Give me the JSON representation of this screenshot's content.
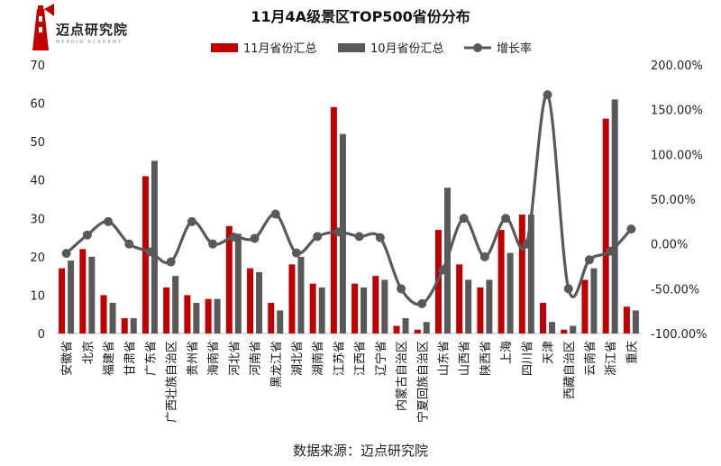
{
  "logo": {
    "name": "迈点研究院",
    "tagline": "MEADIN ACADEMY"
  },
  "source_text": "数据来源：迈点研究院",
  "chart_data": {
    "type": "bar",
    "title": "11月4A级景区TOP500省份分布",
    "categories": [
      "安徽省",
      "北京",
      "福建省",
      "甘肃省",
      "广东省",
      "广西壮族自治区",
      "贵州省",
      "海南省",
      "河北省",
      "河南省",
      "黑龙江省",
      "湖北省",
      "湖南省",
      "江苏省",
      "江西省",
      "辽宁省",
      "内蒙古自治区",
      "宁夏回族自治区",
      "山东省",
      "山西省",
      "陕西省",
      "上海",
      "四川省",
      "天津",
      "西藏自治区",
      "云南省",
      "浙江省",
      "重庆"
    ],
    "series": [
      {
        "name": "11月省份汇总",
        "kind": "bar",
        "axis": "left",
        "color": "#c00000",
        "values": [
          17,
          22,
          10,
          4,
          41,
          12,
          10,
          9,
          28,
          17,
          8,
          18,
          13,
          59,
          13,
          15,
          2,
          1,
          27,
          18,
          12,
          27,
          31,
          8,
          1,
          14,
          56,
          7
        ]
      },
      {
        "name": "10月省份汇总",
        "kind": "bar",
        "axis": "left",
        "color": "#595959",
        "values": [
          19,
          20,
          8,
          4,
          45,
          15,
          8,
          9,
          26,
          16,
          6,
          20,
          12,
          52,
          12,
          14,
          4,
          3,
          38,
          14,
          14,
          21,
          31,
          3,
          2,
          17,
          61,
          6
        ]
      },
      {
        "name": "增长率",
        "kind": "line",
        "axis": "right",
        "color": "#595959",
        "values": [
          -0.1053,
          0.1,
          0.25,
          0.0,
          -0.0889,
          -0.2,
          0.25,
          0.0,
          0.0769,
          0.0625,
          0.3333,
          -0.1,
          0.0833,
          0.1346,
          0.0833,
          0.0714,
          -0.5,
          -0.6667,
          -0.2895,
          0.2857,
          -0.1429,
          0.2857,
          0.0,
          1.6667,
          -0.5,
          -0.1765,
          -0.082,
          0.1667
        ]
      }
    ],
    "y_left": {
      "min": 0,
      "max": 70,
      "step": 10,
      "ticks": [
        "0",
        "10",
        "20",
        "30",
        "40",
        "50",
        "60",
        "70"
      ]
    },
    "y_right": {
      "min": -1.0,
      "max": 2.0,
      "step": 0.5,
      "ticks": [
        "-100.00%",
        "-50.00%",
        "0.00%",
        "50.00%",
        "100.00%",
        "150.00%",
        "200.00%"
      ]
    },
    "legend_position": "top",
    "grid": false
  }
}
